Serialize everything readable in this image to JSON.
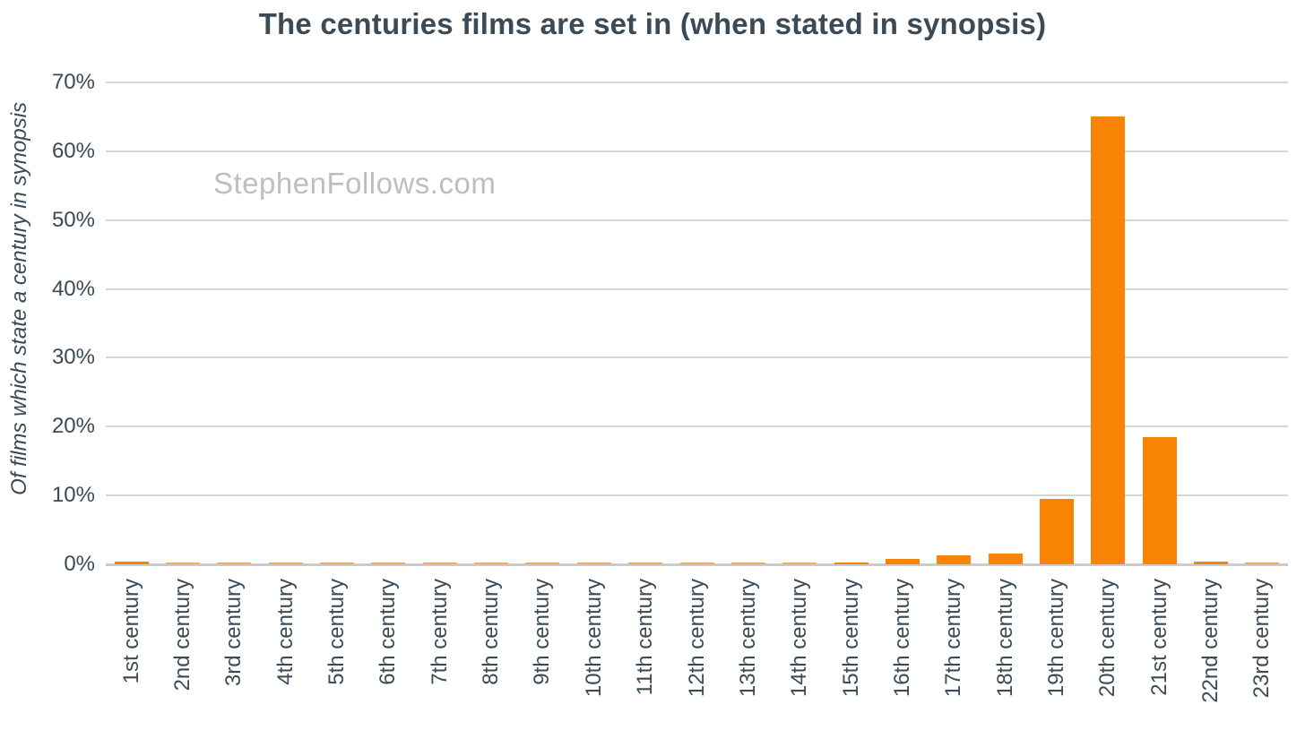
{
  "title": "The centuries films are set in (when stated in synopsis)",
  "watermark": "StephenFollows.com",
  "colors": {
    "text": "#3B4A57",
    "bar": "#F98304",
    "bar_faint": "#F5AA60",
    "gridline": "#D6D6D6",
    "baseline": "#CBCBCB",
    "watermark": "#BEBEBE",
    "background": "#FFFFFF"
  },
  "chart_data": {
    "type": "bar",
    "title": "The centuries films are set in (when stated in synopsis)",
    "xlabel": "",
    "ylabel": "Of films which state a century in synopsis",
    "ylim": [
      0,
      70
    ],
    "yticks_percent": [
      0,
      10,
      20,
      30,
      40,
      50,
      60,
      70
    ],
    "ytick_suffix": "%",
    "grid": true,
    "legend": false,
    "bar_color": "#F98304",
    "categories": [
      "1st century",
      "2nd century",
      "3rd century",
      "4th century",
      "5th century",
      "6th century",
      "7th century",
      "8th century",
      "9th century",
      "10th century",
      "11th century",
      "12th century",
      "13th century",
      "14th century",
      "15th century",
      "16th century",
      "17th century",
      "18th century",
      "19th century",
      "20th century",
      "21st century",
      "22nd century",
      "23rd century"
    ],
    "values": [
      0.4,
      0.2,
      0.2,
      0.2,
      0.2,
      0.2,
      0.2,
      0.2,
      0.2,
      0.2,
      0.2,
      0.2,
      0.2,
      0.2,
      0.3,
      0.8,
      1.3,
      1.5,
      9.5,
      65,
      18.5,
      0.4,
      0.2
    ],
    "value_unit": "%"
  }
}
